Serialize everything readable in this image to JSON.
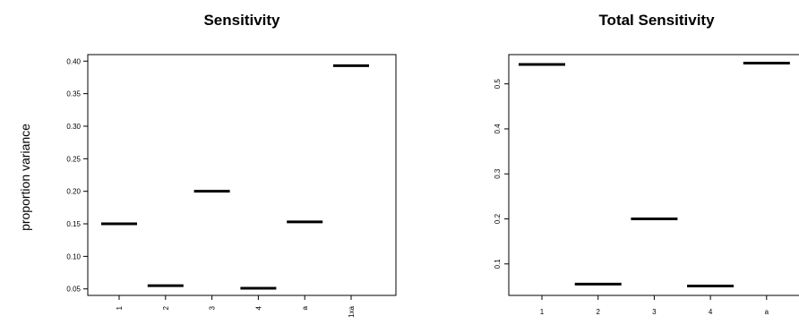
{
  "chart_data": [
    {
      "type": "box",
      "title": "Sensitivity",
      "ylabel": "proportion variance",
      "xlabel": "",
      "categories": [
        "1",
        "2",
        "3",
        "4",
        "a",
        "1xa"
      ],
      "values": [
        0.15,
        0.055,
        0.2,
        0.051,
        0.153,
        0.393
      ],
      "ylim": [
        0.04,
        0.41
      ],
      "yticks": [
        0.05,
        0.1,
        0.15,
        0.2,
        0.25,
        0.3,
        0.35,
        0.4
      ],
      "ytick_labels": [
        "0.05",
        "0.10",
        "0.15",
        "0.20",
        "0.25",
        "0.30",
        "0.35",
        "0.40"
      ],
      "grid": false,
      "legend": "none"
    },
    {
      "type": "box",
      "title": "Total Sensitivity",
      "ylabel": "",
      "xlabel": "",
      "categories": [
        "1",
        "2",
        "3",
        "4",
        "a"
      ],
      "values": [
        0.543,
        0.055,
        0.2,
        0.051,
        0.546
      ],
      "ylim": [
        0.03,
        0.565
      ],
      "yticks": [
        0.1,
        0.2,
        0.3,
        0.4,
        0.5
      ],
      "ytick_labels": [
        "0.1",
        "0.2",
        "0.3",
        "0.4",
        "0.5"
      ],
      "grid": false,
      "legend": "none"
    }
  ]
}
